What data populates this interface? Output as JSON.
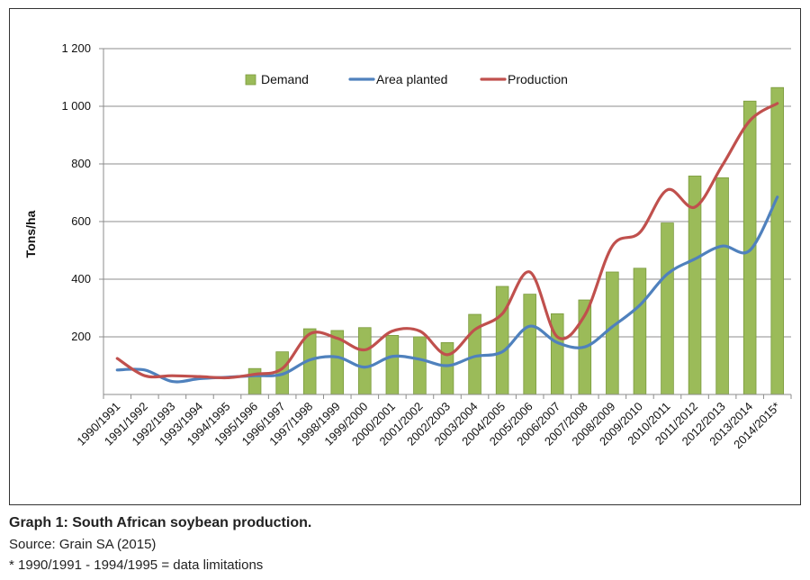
{
  "caption": {
    "title": "Graph 1: South African soybean production.",
    "source": "Source: Grain SA (2015)",
    "note": "* 1990/1991 - 1994/1995 = data limitations"
  },
  "chart_data": {
    "type": "bar",
    "title": "",
    "xlabel": "",
    "ylabel": "Tons/ha",
    "ylim": [
      0,
      1200
    ],
    "yticks": [
      200,
      400,
      600,
      800,
      1000,
      1200
    ],
    "ytick_labels": [
      "200",
      "400",
      "600",
      "800",
      "1 000",
      "1 200"
    ],
    "grid": true,
    "legend_position": "top",
    "categories": [
      "1990/1991",
      "1991/1992",
      "1992/1993",
      "1993/1994",
      "1994/1995",
      "1995/1996",
      "1996/1997",
      "1997/1998",
      "1998/1999",
      "1999/2000",
      "2000/2001",
      "2001/2002",
      "2002/2003",
      "2003/2004",
      "2004/2005",
      "2005/2006",
      "2006/2007",
      "2007/2008",
      "2008/2009",
      "2009/2010",
      "2010/2011",
      "2011/2012",
      "2012/2013",
      "2013/2014",
      "2014/2015*"
    ],
    "series": [
      {
        "name": "Demand",
        "kind": "bar",
        "color": "#9bbb59",
        "values": [
          null,
          null,
          null,
          null,
          null,
          90,
          148,
          228,
          222,
          232,
          205,
          200,
          180,
          278,
          375,
          348,
          280,
          328,
          425,
          438,
          595,
          758,
          752,
          1018,
          1065
        ]
      },
      {
        "name": "Area planted",
        "kind": "line",
        "color": "#4f81bd",
        "values": [
          85,
          85,
          45,
          55,
          60,
          65,
          70,
          120,
          130,
          95,
          132,
          122,
          100,
          132,
          148,
          237,
          180,
          165,
          235,
          310,
          418,
          470,
          515,
          500,
          685
        ]
      },
      {
        "name": "Production",
        "kind": "line",
        "color": "#c0504d",
        "values": [
          125,
          65,
          65,
          62,
          58,
          70,
          90,
          210,
          195,
          155,
          220,
          220,
          138,
          225,
          280,
          425,
          200,
          275,
          515,
          562,
          710,
          650,
          795,
          950,
          1010
        ]
      }
    ]
  }
}
